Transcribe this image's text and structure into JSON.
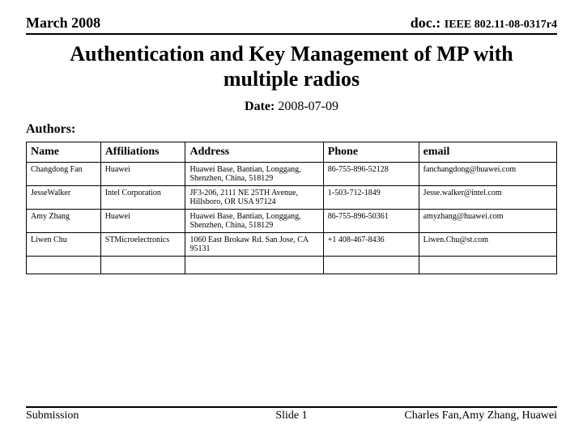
{
  "header": {
    "left": "March 2008",
    "right_label": "doc.:",
    "right_docnum": "IEEE 802.11-08-0317r4"
  },
  "title": "Authentication and Key Management of MP with multiple radios",
  "date": {
    "label": "Date:",
    "value": "2008-07-09"
  },
  "authors_label": "Authors:",
  "table": {
    "columns": [
      "Name",
      "Affiliations",
      "Address",
      "Phone",
      "email"
    ],
    "rows": [
      [
        "Changdong Fan",
        "Huawei",
        "Huawei Base, Bantian, Longgang, Shenzhen, China, 518129",
        "86-755-896-52128",
        "fanchangdong@huawei.com"
      ],
      [
        "JesseWalker",
        " Intel Corporation",
        "JF3-206, 2111 NE 25TH Avenue, Hillsboro, OR USA  97124",
        "1-503-712-1849",
        "Jesse.walker@intel.com"
      ],
      [
        "Amy Zhang",
        "Huawei",
        "Huawei Base, Bantian, Longgang, Shenzhen, China, 518129",
        "86-755-896-50361",
        "amyzhang@huawei.com"
      ],
      [
        "Liwen Chu",
        "STMicroelectronics",
        "1060 East Brokaw Rd. San Jose, CA 95131",
        "+1 408-467-8436",
        "Liwen.Chu@st.com"
      ]
    ],
    "empty_rows": 1
  },
  "footer": {
    "left": "Submission",
    "center": "Slide 1",
    "right": "Charles Fan,Amy Zhang, Huawei"
  }
}
